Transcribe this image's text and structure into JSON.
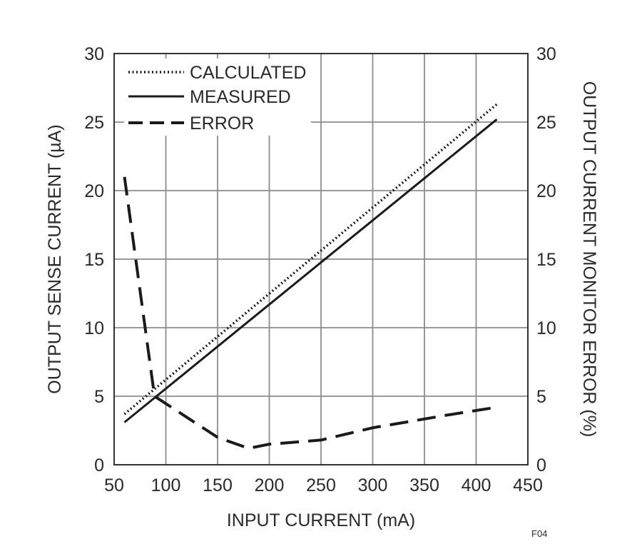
{
  "chart_data": {
    "type": "line",
    "xlabel": "INPUT CURRENT (mA)",
    "ylabel_left": "OUTPUT SENSE CURRENT (µA)",
    "ylabel_right": "OUTPUT CURRENT MONITOR ERROR (%)",
    "xlim": [
      50,
      450
    ],
    "ylim_left": [
      0,
      30
    ],
    "ylim_right": [
      0,
      30
    ],
    "x_ticks": [
      50,
      100,
      150,
      200,
      250,
      300,
      350,
      400,
      450
    ],
    "y_ticks_left": [
      0,
      5,
      10,
      15,
      20,
      25,
      30
    ],
    "y_ticks_right": [
      0,
      5,
      10,
      15,
      20,
      25,
      30
    ],
    "grid": true,
    "legend_position": "top-left",
    "figure_id": "F04",
    "series": [
      {
        "name": "CALCULATED",
        "style": "dotted",
        "axis": "left",
        "x": [
          60,
          420
        ],
        "y": [
          3.7,
          26.3
        ]
      },
      {
        "name": "MEASURED",
        "style": "solid",
        "axis": "left",
        "x": [
          60,
          420
        ],
        "y": [
          3.1,
          25.2
        ]
      },
      {
        "name": "ERROR",
        "style": "dashed",
        "axis": "right",
        "x": [
          60,
          89,
          150,
          180,
          200,
          250,
          300,
          370,
          420
        ],
        "y": [
          21,
          5.0,
          2.0,
          1.2,
          1.5,
          1.8,
          2.7,
          3.6,
          4.2
        ]
      }
    ]
  }
}
